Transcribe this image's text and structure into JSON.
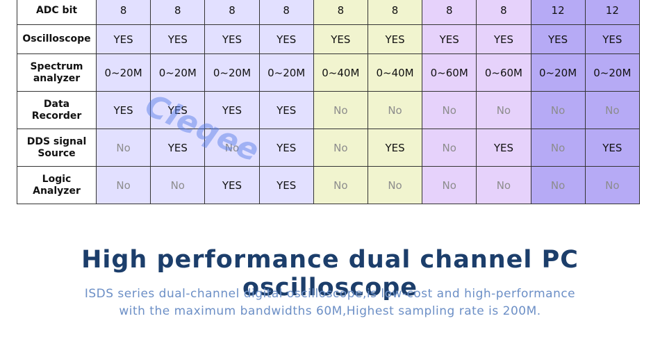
{
  "column_colors": [
    "#e2e0ff",
    "#e2e0ff",
    "#e2e0ff",
    "#e2e0ff",
    "#f1f4cf",
    "#f1f4cf",
    "#e6d2fb",
    "#e6d2fb",
    "#b6aaf5",
    "#b6aaf5"
  ],
  "rows": [
    {
      "label": "ADC bit",
      "cells": [
        "8",
        "8",
        "8",
        "8",
        "8",
        "8",
        "8",
        "8",
        "12",
        "12"
      ]
    },
    {
      "label": "Oscilloscope",
      "cells": [
        "YES",
        "YES",
        "YES",
        "YES",
        "YES",
        "YES",
        "YES",
        "YES",
        "YES",
        "YES"
      ]
    },
    {
      "label": "Spectrum analyzer",
      "cells": [
        "0~20M",
        "0~20M",
        "0~20M",
        "0~20M",
        "0~40M",
        "0~40M",
        "0~60M",
        "0~60M",
        "0~20M",
        "0~20M"
      ]
    },
    {
      "label": "Data Recorder",
      "cells": [
        "YES",
        "YES",
        "YES",
        "YES",
        "No",
        "No",
        "No",
        "No",
        "No",
        "No"
      ]
    },
    {
      "label": "DDS signal Source",
      "cells": [
        "No",
        "YES",
        "No",
        "YES",
        "No",
        "YES",
        "No",
        "YES",
        "No",
        "YES"
      ]
    },
    {
      "label": "Logic Analyzer",
      "cells": [
        "No",
        "No",
        "YES",
        "YES",
        "No",
        "No",
        "No",
        "No",
        "No",
        "No"
      ]
    }
  ],
  "watermark": "Cleqee",
  "headline": "High performance dual channel PC oscilloscope",
  "subline_1": "ISDS series dual-channel digital oscilloscope,is low-cost and high-performance",
  "subline_2": "with the maximum bandwidths 60M,Highest sampling rate is 200M.",
  "colors": {
    "headline": "#1c3e6b",
    "subline": "#6c8fc6",
    "no_text": "#8c8c8c"
  }
}
